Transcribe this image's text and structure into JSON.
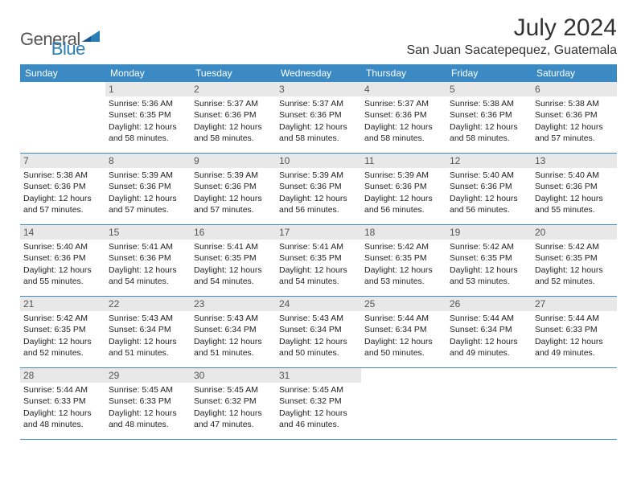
{
  "logo": {
    "text1": "General",
    "text2": "Blue"
  },
  "title": "July 2024",
  "location": "San Juan Sacatepequez, Guatemala",
  "colors": {
    "header_bg": "#3b8ac4",
    "header_text": "#ffffff",
    "daynum_bg": "#e8e8e8",
    "daynum_text": "#555555",
    "border": "#3b8ac4",
    "logo_gray": "#555555",
    "logo_blue": "#2a7fb7"
  },
  "day_names": [
    "Sunday",
    "Monday",
    "Tuesday",
    "Wednesday",
    "Thursday",
    "Friday",
    "Saturday"
  ],
  "weeks": [
    [
      {
        "n": "",
        "sr": "",
        "ss": "",
        "dl": ""
      },
      {
        "n": "1",
        "sr": "Sunrise: 5:36 AM",
        "ss": "Sunset: 6:35 PM",
        "dl": "Daylight: 12 hours and 58 minutes."
      },
      {
        "n": "2",
        "sr": "Sunrise: 5:37 AM",
        "ss": "Sunset: 6:36 PM",
        "dl": "Daylight: 12 hours and 58 minutes."
      },
      {
        "n": "3",
        "sr": "Sunrise: 5:37 AM",
        "ss": "Sunset: 6:36 PM",
        "dl": "Daylight: 12 hours and 58 minutes."
      },
      {
        "n": "4",
        "sr": "Sunrise: 5:37 AM",
        "ss": "Sunset: 6:36 PM",
        "dl": "Daylight: 12 hours and 58 minutes."
      },
      {
        "n": "5",
        "sr": "Sunrise: 5:38 AM",
        "ss": "Sunset: 6:36 PM",
        "dl": "Daylight: 12 hours and 58 minutes."
      },
      {
        "n": "6",
        "sr": "Sunrise: 5:38 AM",
        "ss": "Sunset: 6:36 PM",
        "dl": "Daylight: 12 hours and 57 minutes."
      }
    ],
    [
      {
        "n": "7",
        "sr": "Sunrise: 5:38 AM",
        "ss": "Sunset: 6:36 PM",
        "dl": "Daylight: 12 hours and 57 minutes."
      },
      {
        "n": "8",
        "sr": "Sunrise: 5:39 AM",
        "ss": "Sunset: 6:36 PM",
        "dl": "Daylight: 12 hours and 57 minutes."
      },
      {
        "n": "9",
        "sr": "Sunrise: 5:39 AM",
        "ss": "Sunset: 6:36 PM",
        "dl": "Daylight: 12 hours and 57 minutes."
      },
      {
        "n": "10",
        "sr": "Sunrise: 5:39 AM",
        "ss": "Sunset: 6:36 PM",
        "dl": "Daylight: 12 hours and 56 minutes."
      },
      {
        "n": "11",
        "sr": "Sunrise: 5:39 AM",
        "ss": "Sunset: 6:36 PM",
        "dl": "Daylight: 12 hours and 56 minutes."
      },
      {
        "n": "12",
        "sr": "Sunrise: 5:40 AM",
        "ss": "Sunset: 6:36 PM",
        "dl": "Daylight: 12 hours and 56 minutes."
      },
      {
        "n": "13",
        "sr": "Sunrise: 5:40 AM",
        "ss": "Sunset: 6:36 PM",
        "dl": "Daylight: 12 hours and 55 minutes."
      }
    ],
    [
      {
        "n": "14",
        "sr": "Sunrise: 5:40 AM",
        "ss": "Sunset: 6:36 PM",
        "dl": "Daylight: 12 hours and 55 minutes."
      },
      {
        "n": "15",
        "sr": "Sunrise: 5:41 AM",
        "ss": "Sunset: 6:36 PM",
        "dl": "Daylight: 12 hours and 54 minutes."
      },
      {
        "n": "16",
        "sr": "Sunrise: 5:41 AM",
        "ss": "Sunset: 6:35 PM",
        "dl": "Daylight: 12 hours and 54 minutes."
      },
      {
        "n": "17",
        "sr": "Sunrise: 5:41 AM",
        "ss": "Sunset: 6:35 PM",
        "dl": "Daylight: 12 hours and 54 minutes."
      },
      {
        "n": "18",
        "sr": "Sunrise: 5:42 AM",
        "ss": "Sunset: 6:35 PM",
        "dl": "Daylight: 12 hours and 53 minutes."
      },
      {
        "n": "19",
        "sr": "Sunrise: 5:42 AM",
        "ss": "Sunset: 6:35 PM",
        "dl": "Daylight: 12 hours and 53 minutes."
      },
      {
        "n": "20",
        "sr": "Sunrise: 5:42 AM",
        "ss": "Sunset: 6:35 PM",
        "dl": "Daylight: 12 hours and 52 minutes."
      }
    ],
    [
      {
        "n": "21",
        "sr": "Sunrise: 5:42 AM",
        "ss": "Sunset: 6:35 PM",
        "dl": "Daylight: 12 hours and 52 minutes."
      },
      {
        "n": "22",
        "sr": "Sunrise: 5:43 AM",
        "ss": "Sunset: 6:34 PM",
        "dl": "Daylight: 12 hours and 51 minutes."
      },
      {
        "n": "23",
        "sr": "Sunrise: 5:43 AM",
        "ss": "Sunset: 6:34 PM",
        "dl": "Daylight: 12 hours and 51 minutes."
      },
      {
        "n": "24",
        "sr": "Sunrise: 5:43 AM",
        "ss": "Sunset: 6:34 PM",
        "dl": "Daylight: 12 hours and 50 minutes."
      },
      {
        "n": "25",
        "sr": "Sunrise: 5:44 AM",
        "ss": "Sunset: 6:34 PM",
        "dl": "Daylight: 12 hours and 50 minutes."
      },
      {
        "n": "26",
        "sr": "Sunrise: 5:44 AM",
        "ss": "Sunset: 6:34 PM",
        "dl": "Daylight: 12 hours and 49 minutes."
      },
      {
        "n": "27",
        "sr": "Sunrise: 5:44 AM",
        "ss": "Sunset: 6:33 PM",
        "dl": "Daylight: 12 hours and 49 minutes."
      }
    ],
    [
      {
        "n": "28",
        "sr": "Sunrise: 5:44 AM",
        "ss": "Sunset: 6:33 PM",
        "dl": "Daylight: 12 hours and 48 minutes."
      },
      {
        "n": "29",
        "sr": "Sunrise: 5:45 AM",
        "ss": "Sunset: 6:33 PM",
        "dl": "Daylight: 12 hours and 48 minutes."
      },
      {
        "n": "30",
        "sr": "Sunrise: 5:45 AM",
        "ss": "Sunset: 6:32 PM",
        "dl": "Daylight: 12 hours and 47 minutes."
      },
      {
        "n": "31",
        "sr": "Sunrise: 5:45 AM",
        "ss": "Sunset: 6:32 PM",
        "dl": "Daylight: 12 hours and 46 minutes."
      },
      {
        "n": "",
        "sr": "",
        "ss": "",
        "dl": ""
      },
      {
        "n": "",
        "sr": "",
        "ss": "",
        "dl": ""
      },
      {
        "n": "",
        "sr": "",
        "ss": "",
        "dl": ""
      }
    ]
  ]
}
